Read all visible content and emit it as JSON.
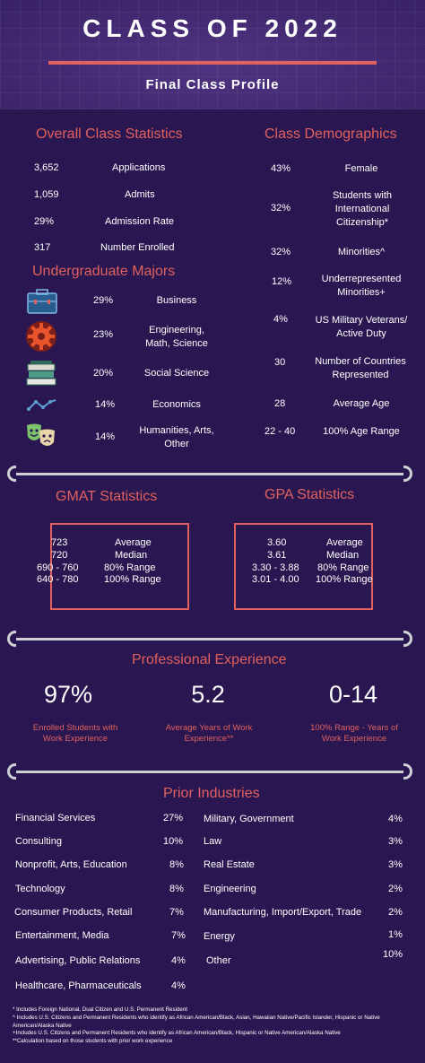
{
  "header": {
    "title": "CLASS OF 2022",
    "subtitle": "Final Class Profile"
  },
  "overall": {
    "heading": "Overall Class Statistics",
    "rows": [
      {
        "value": "3,652",
        "label": "Applications"
      },
      {
        "value": "1,059",
        "label": "Admits"
      },
      {
        "value": "29%",
        "label": "Admission Rate"
      },
      {
        "value": "317",
        "label": "Number Enrolled"
      }
    ]
  },
  "majors": {
    "heading": "Undergraduate Majors",
    "rows": [
      {
        "icon": "briefcase-icon",
        "pct": "29%",
        "label": "Business"
      },
      {
        "icon": "gear-icon",
        "pct": "23%",
        "label": "Engineering, Math, Science"
      },
      {
        "icon": "books-icon",
        "pct": "20%",
        "label": "Social Science"
      },
      {
        "icon": "line-chart-icon",
        "pct": "14%",
        "label": "Economics"
      },
      {
        "icon": "theater-masks-icon",
        "pct": "14%",
        "label": "Humanities, Arts, Other"
      }
    ]
  },
  "demographics": {
    "heading": "Class Demographics",
    "rows": [
      {
        "value": "43%",
        "label": "Female"
      },
      {
        "value": "32%",
        "label": "Students with International Citizenship*"
      },
      {
        "value": "32%",
        "label": "Minorities^"
      },
      {
        "value": "12%",
        "label": "Underrepresented Minorities+"
      },
      {
        "value": "4%",
        "label": "US Military Veterans/ Active Duty"
      },
      {
        "value": "30",
        "label": "Number of Countries Represented"
      },
      {
        "value": "28",
        "label": "Average Age"
      },
      {
        "value": "22 - 40",
        "label": "100% Age Range"
      }
    ]
  },
  "gmat": {
    "heading": "GMAT Statistics",
    "rows": [
      {
        "value": "723",
        "label": "Average"
      },
      {
        "value": "720",
        "label": "Median"
      },
      {
        "value": "690 - 760",
        "label": "80% Range"
      },
      {
        "value": "640 - 780",
        "label": "100% Range"
      }
    ]
  },
  "gpa": {
    "heading": "GPA Statistics",
    "rows": [
      {
        "value": "3.60",
        "label": "Average"
      },
      {
        "value": "3.61",
        "label": "Median"
      },
      {
        "value": "3.30 - 3.88",
        "label": "80% Range"
      },
      {
        "value": "3.01 - 4.00",
        "label": "100% Range"
      }
    ]
  },
  "experience": {
    "heading": "Professional Experience",
    "stats": [
      {
        "value": "97%",
        "caption": "Enrolled Students with Work Experience"
      },
      {
        "value": "5.2",
        "caption": "Average Years of Work Experience**"
      },
      {
        "value": "0-14",
        "caption": "100% Range - Years of Work Experience"
      }
    ]
  },
  "industries": {
    "heading": "Prior Industries",
    "left": [
      {
        "name": "Financial Services",
        "pct": "27%"
      },
      {
        "name": "Consulting",
        "pct": "10%"
      },
      {
        "name": "Nonprofit, Arts, Education",
        "pct": "8%"
      },
      {
        "name": "Technology",
        "pct": "8%"
      },
      {
        "name": "Consumer Products, Retail",
        "pct": "7%"
      },
      {
        "name": "Entertainment, Media",
        "pct": "7%"
      },
      {
        "name": "Advertising, Public Relations",
        "pct": "4%"
      },
      {
        "name": "Healthcare, Pharmaceuticals",
        "pct": "4%"
      }
    ],
    "right": [
      {
        "name": "Military, Government",
        "pct": "4%"
      },
      {
        "name": "Law",
        "pct": "3%"
      },
      {
        "name": "Real Estate",
        "pct": "3%"
      },
      {
        "name": "Engineering",
        "pct": "2%"
      },
      {
        "name": "Manufacturing, Import/Export, Trade",
        "pct": "2%"
      },
      {
        "name": "Energy",
        "pct": "1%"
      },
      {
        "name": "Other",
        "pct": "10%"
      }
    ]
  },
  "footnotes": [
    "* Includes Foreign National, Dual Citizen and U.S. Permanent Resident",
    "^ Includes U.S. Citizens and Permanent Residents who identify as African American/Black, Asian, Hawaiian Native/Pacific Islander, Hispanic or Native American/Alaska Native",
    "+Includes U.S. Citizens and Permanent Residents who identify as African American/Black, Hispanic or Native American/Alaska Native",
    "**Calculation based on those students with prior work experience"
  ],
  "colors": {
    "background": "#2a1650",
    "accent": "#e0615e",
    "header": "#3a2367",
    "divider": "#cfcfd6"
  }
}
